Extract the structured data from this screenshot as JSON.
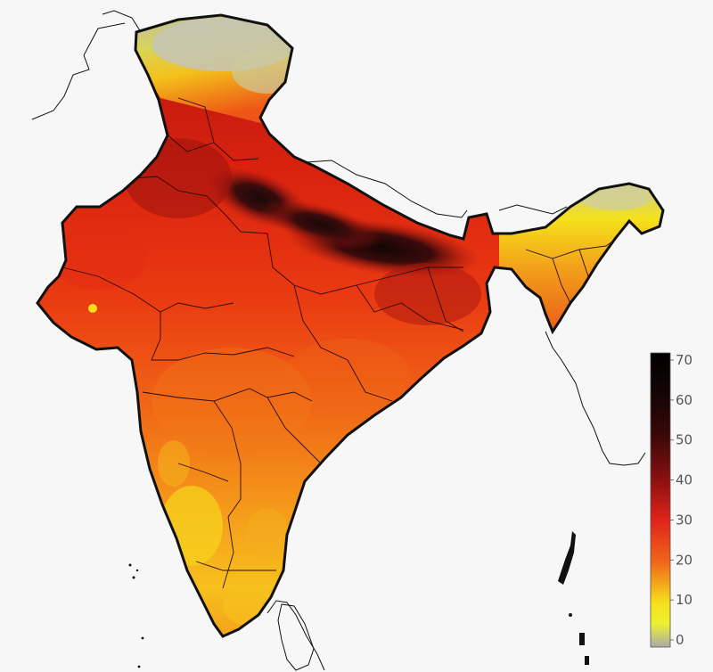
{
  "map": {
    "colorbar": {
      "ticks": [
        "70",
        "60",
        "50",
        "40",
        "30",
        "20",
        "10",
        "0"
      ],
      "min": 0,
      "max": 70
    },
    "colors": {
      "background": "#f7f7f7",
      "outline": "#111111",
      "gray": "#b8b8b8",
      "yellow": "#f6e21c",
      "orange": "#f39a1a",
      "red": "#e23418",
      "dark_red": "#8a1410",
      "black": "#1a0a0a"
    }
  }
}
